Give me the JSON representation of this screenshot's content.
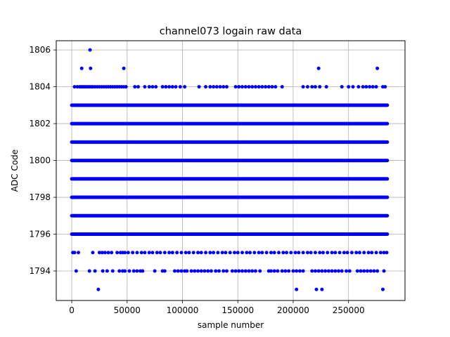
{
  "chart_data": {
    "type": "scatter",
    "title": "channel073 logain raw data",
    "xlabel": "sample number",
    "ylabel": "ADC Code",
    "xlim": [
      -14000,
      301000
    ],
    "ylim": [
      1792.4,
      1806.5
    ],
    "xticks": [
      0,
      50000,
      100000,
      150000,
      200000,
      250000
    ],
    "yticks": [
      1794,
      1796,
      1798,
      1800,
      1802,
      1804,
      1806
    ],
    "grid": true,
    "marker_color": "#0000ff",
    "x_range": [
      0,
      285000
    ],
    "dense_levels": [
      1796,
      1797,
      1798,
      1799,
      1800,
      1801,
      1802,
      1803
    ],
    "sparse_levels": [
      {
        "y": 1795,
        "x": [
          1000,
          2500,
          6000,
          19000,
          25000,
          27500,
          30000,
          33000,
          36000,
          41000,
          44000,
          46000,
          48000,
          51000,
          55000,
          59000,
          63000,
          66000,
          70000,
          73000,
          77000,
          80000,
          84000,
          88000,
          91000,
          95000,
          99000,
          103000,
          106000,
          110000,
          114000,
          117000,
          121000,
          125000,
          128000,
          132000,
          136000,
          139000,
          143000,
          147000,
          150000,
          154000,
          158000,
          161000,
          165000,
          169000,
          172000,
          176000,
          180000,
          183000,
          187000,
          191000,
          194000,
          198000,
          202000,
          205000,
          209000,
          213000,
          216000,
          220000,
          224000,
          227000,
          231000,
          235000,
          238000,
          242000,
          246000,
          249000,
          253000,
          257000,
          260000,
          264000,
          268000,
          271000,
          275000,
          279000,
          282000,
          284500
        ]
      },
      {
        "y": 1794,
        "x": [
          4000,
          16000,
          21000,
          28000,
          32000,
          37000,
          43000,
          46000,
          48000,
          52000,
          56000,
          59000,
          62000,
          64000,
          75000,
          82000,
          84000,
          93000,
          96000,
          99000,
          102000,
          104000,
          108000,
          111000,
          114000,
          117000,
          120000,
          123000,
          126000,
          130000,
          133000,
          137000,
          140000,
          145000,
          148000,
          151000,
          154000,
          157000,
          160000,
          163000,
          166000,
          170000,
          178000,
          180000,
          183000,
          186000,
          190000,
          193000,
          196000,
          200000,
          203000,
          206000,
          209000,
          217000,
          220000,
          223000,
          226000,
          229000,
          232000,
          235000,
          238000,
          241000,
          244000,
          248000,
          251000,
          258000,
          261000,
          264000,
          267000,
          270000,
          273000,
          276000,
          282000
        ]
      },
      {
        "y": 1804,
        "x": [
          2500,
          5000,
          7000,
          8500,
          10000,
          11500,
          13000,
          14500,
          16000,
          17500,
          19000,
          21000,
          23000,
          25000,
          27000,
          29000,
          31000,
          33000,
          35000,
          37000,
          39000,
          41000,
          43000,
          45000,
          47000,
          49000,
          57000,
          60000,
          66000,
          70000,
          73000,
          76000,
          82000,
          85000,
          88000,
          91000,
          94000,
          98000,
          102000,
          115000,
          121000,
          125000,
          128000,
          131000,
          134000,
          137000,
          140000,
          148000,
          151000,
          154000,
          157000,
          160000,
          163000,
          166000,
          169000,
          172000,
          175000,
          178000,
          181000,
          184000,
          190000,
          209000,
          213000,
          217000,
          220000,
          224000,
          230000,
          244000,
          250000,
          254000,
          259000,
          263000,
          266000,
          269000,
          272000,
          275000,
          281000,
          283000
        ]
      },
      {
        "y": 1805,
        "x": [
          9000,
          17000,
          47000,
          223000,
          276000
        ]
      },
      {
        "y": 1806,
        "x": [
          16500
        ]
      },
      {
        "y": 1793,
        "x": [
          24000,
          203000,
          221000,
          226000,
          281000
        ]
      }
    ]
  }
}
